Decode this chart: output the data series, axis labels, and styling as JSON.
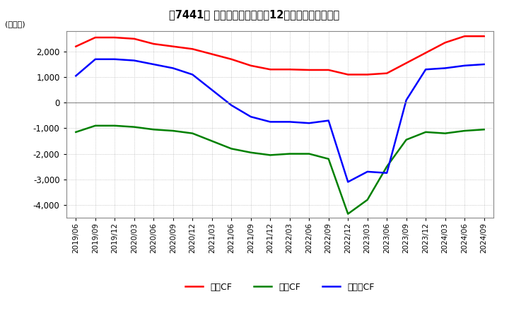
{
  "title": "【7441】 キャッシュフローの12か月移動合計の推移",
  "ylabel": "(百万円)",
  "ylim": [
    -4500,
    2800
  ],
  "yticks": [
    -4000,
    -3000,
    -2000,
    -1000,
    0,
    1000,
    2000
  ],
  "background_color": "#ffffff",
  "plot_bg_color": "#ffffff",
  "grid_color": "#aaaaaa",
  "legend_labels": [
    "営業CF",
    "投資CF",
    "フリーCF"
  ],
  "legend_colors": [
    "#ff0000",
    "#008000",
    "#0000ff"
  ],
  "dates": [
    "2019/06",
    "2019/09",
    "2019/12",
    "2020/03",
    "2020/06",
    "2020/09",
    "2020/12",
    "2021/03",
    "2021/06",
    "2021/09",
    "2021/12",
    "2022/03",
    "2022/06",
    "2022/09",
    "2022/12",
    "2023/03",
    "2023/06",
    "2023/09",
    "2023/12",
    "2024/03",
    "2024/06",
    "2024/09"
  ],
  "operating_cf": [
    2200,
    2550,
    2550,
    2500,
    2300,
    2200,
    2100,
    1900,
    1700,
    1450,
    1300,
    1300,
    1280,
    1280,
    1100,
    1100,
    1150,
    1550,
    1950,
    2350,
    2600,
    2600
  ],
  "investing_cf": [
    -1150,
    -900,
    -900,
    -950,
    -1050,
    -1100,
    -1200,
    -1500,
    -1800,
    -1950,
    -2050,
    -2000,
    -2000,
    -2200,
    -4350,
    -3800,
    -2500,
    -1450,
    -1150,
    -1200,
    -1100,
    -1050
  ],
  "free_cf": [
    1050,
    1700,
    1700,
    1650,
    1500,
    1350,
    1100,
    500,
    -100,
    -550,
    -750,
    -750,
    -800,
    -700,
    -3100,
    -2700,
    -2750,
    100,
    1300,
    1350,
    1450,
    1500
  ]
}
